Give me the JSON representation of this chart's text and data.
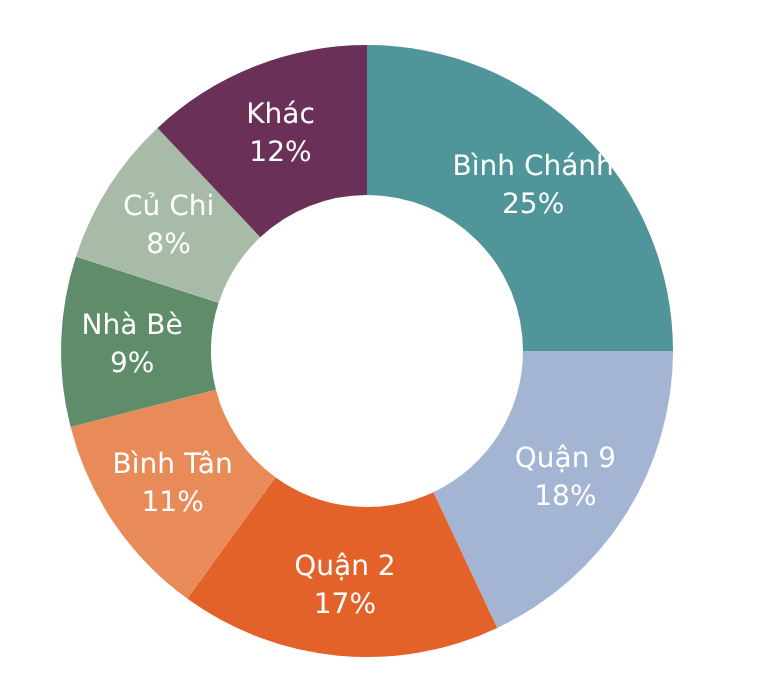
{
  "chart_data": {
    "type": "donut",
    "categories": [
      "Bình Chánh",
      "Quận 9",
      "Quận 2",
      "Bình Tân",
      "Nhà Bè",
      "Củ Chi",
      "Khác"
    ],
    "values": [
      25,
      18,
      17,
      11,
      9,
      8,
      12
    ],
    "value_labels": [
      "25%",
      "18%",
      "17%",
      "11%",
      "9%",
      "8%",
      "12%"
    ],
    "colors": [
      "#4f9599",
      "#a3b5d3",
      "#e2622a",
      "#e98b58",
      "#5f8d6a",
      "#a8bba8",
      "#6b3057"
    ]
  }
}
